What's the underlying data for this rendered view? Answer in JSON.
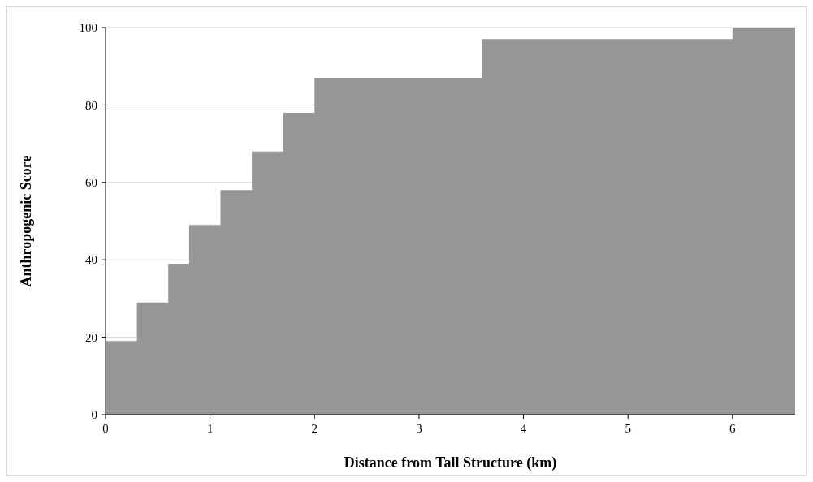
{
  "chart_data": {
    "type": "area",
    "xlabel": "Distance from Tall Structure (km)",
    "ylabel": "Anthropogenic Score",
    "x": [
      0,
      0.3,
      0.3,
      0.6,
      0.6,
      0.8,
      0.8,
      1.1,
      1.1,
      1.4,
      1.4,
      1.7,
      1.7,
      2.0,
      2.0,
      3.6,
      3.6,
      6.0,
      6.0,
      6.6
    ],
    "series": [
      {
        "color": "#969696",
        "values": [
          19,
          19,
          29,
          29,
          39,
          39,
          49,
          49,
          58,
          58,
          68,
          68,
          78,
          78,
          87,
          87,
          97,
          97,
          100,
          100
        ]
      }
    ],
    "xlim": [
      0,
      6.6
    ],
    "xticks": [
      0,
      1,
      2,
      3,
      4,
      5,
      6
    ],
    "ylim": [
      0,
      100
    ],
    "yticks": [
      0,
      20,
      40,
      60,
      80,
      100
    ],
    "grid": "y"
  }
}
